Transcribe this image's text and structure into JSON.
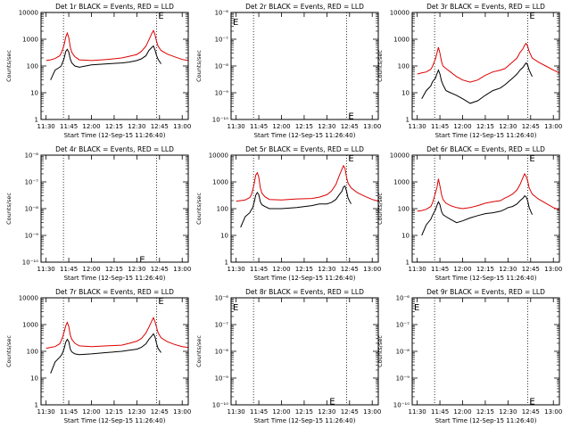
{
  "figure": {
    "xlabel": "Start Time (12-Sep-15 11:26:40)",
    "ylabel": "Counts/sec",
    "xtick_labels": [
      "11:30",
      "11:45",
      "12:00",
      "12:15",
      "12:30",
      "12:45",
      "13:00"
    ],
    "xtick_minutes": [
      0,
      15,
      30,
      45,
      60,
      75,
      90
    ],
    "xlim_minutes_after_1130": [
      -3.333,
      94
    ],
    "dotted_line_minutes": [
      11.5,
      73
    ],
    "colors": {
      "events": "#000000",
      "lld": "#dd0000",
      "axes": "#000000"
    }
  },
  "chart_data": [
    {
      "type": "line",
      "title": "Det 1r BLACK = Events, RED = LLD",
      "yscale": "log",
      "ylim": [
        1,
        10000
      ],
      "ytick_labels": [
        "1",
        "10",
        "100",
        "1000",
        "10000"
      ],
      "marker": {
        "text": "E",
        "x_minute": 73,
        "y": 8000
      },
      "x_minutes": [
        0,
        3,
        6,
        9,
        10,
        11,
        12,
        13,
        14,
        15,
        16,
        17,
        19,
        22,
        30,
        40,
        50,
        55,
        60,
        63,
        66,
        68,
        70,
        71,
        72,
        73,
        74,
        76,
        80,
        85,
        90,
        94
      ],
      "series": [
        {
          "name": "LLD",
          "color": "#dd0000",
          "values": [
            160,
            170,
            190,
            240,
            300,
            420,
            650,
            1200,
            1700,
            1150,
            500,
            320,
            220,
            170,
            160,
            175,
            200,
            230,
            270,
            350,
            550,
            950,
            1700,
            2100,
            1500,
            850,
            560,
            380,
            280,
            220,
            175,
            160
          ]
        },
        {
          "name": "Events",
          "color": "#000000",
          "x_start": 3,
          "x_end": 76,
          "values": [
            null,
            30,
            70,
            90,
            100,
            140,
            200,
            350,
            420,
            330,
            180,
            130,
            100,
            90,
            110,
            120,
            130,
            140,
            160,
            185,
            240,
            380,
            500,
            560,
            400,
            250,
            180,
            120,
            null,
            null,
            null,
            null
          ]
        }
      ]
    },
    {
      "type": "line",
      "title": "Det 2r BLACK = Events, RED = LLD",
      "yscale": "log",
      "ylim": [
        1e-10,
        1e-06
      ],
      "ytick_labels": [
        "10⁻⁶",
        "10⁻⁷",
        "10⁻⁸",
        "10⁻⁹",
        "10⁻¹⁰"
      ],
      "marker": {
        "text": "E",
        "x_minute": 73,
        "y": 1.4e-10
      },
      "corner_marker": "E",
      "series": []
    },
    {
      "type": "line",
      "title": "Det 3r BLACK = Events, RED = LLD",
      "yscale": "log",
      "ylim": [
        1,
        10000
      ],
      "ytick_labels": [
        "1",
        "10",
        "100",
        "1000",
        "10000"
      ],
      "marker": {
        "text": "E",
        "x_minute": 73,
        "y": 8000
      },
      "x_minutes": [
        0,
        3,
        6,
        9,
        10,
        11,
        12,
        13,
        14,
        15,
        16,
        17,
        19,
        22,
        26,
        30,
        35,
        40,
        45,
        50,
        55,
        58,
        60,
        63,
        66,
        68,
        70,
        71,
        72,
        73,
        74,
        76,
        80,
        85,
        90,
        94
      ],
      "series": [
        {
          "name": "LLD",
          "color": "#dd0000",
          "values": [
            50,
            55,
            60,
            75,
            95,
            130,
            180,
            300,
            500,
            300,
            150,
            100,
            80,
            60,
            40,
            30,
            25,
            30,
            45,
            60,
            70,
            80,
            100,
            140,
            200,
            320,
            450,
            600,
            700,
            550,
            350,
            200,
            140,
            100,
            70,
            55
          ]
        },
        {
          "name": "Events",
          "color": "#000000",
          "x_start": 3,
          "x_end": 76,
          "values": [
            null,
            6,
            12,
            18,
            25,
            30,
            35,
            50,
            70,
            50,
            28,
            20,
            12,
            10,
            8,
            6,
            4,
            5,
            8,
            12,
            15,
            20,
            25,
            35,
            50,
            70,
            90,
            110,
            130,
            110,
            70,
            40,
            null,
            null,
            null,
            null
          ]
        }
      ]
    },
    {
      "type": "line",
      "title": "Det 4r BLACK = Events, RED = LLD",
      "yscale": "log",
      "ylim": [
        1e-10,
        1e-06
      ],
      "ytick_labels": [
        "10⁻⁶",
        "10⁻⁷",
        "10⁻⁸",
        "10⁻⁹",
        "10⁻¹⁰"
      ],
      "marker": {
        "text": "E",
        "x_minute": 60.5,
        "y": 1.3e-10
      },
      "series": []
    },
    {
      "type": "line",
      "title": "Det 5r BLACK = Events, RED = LLD",
      "yscale": "log",
      "ylim": [
        1,
        10000
      ],
      "ytick_labels": [
        "1",
        "10",
        "100",
        "1000",
        "10000"
      ],
      "marker": {
        "text": "E",
        "x_minute": 73,
        "y": 8000
      },
      "x_minutes": [
        0,
        3,
        6,
        9,
        10,
        11,
        12,
        13,
        14,
        15,
        16,
        17,
        19,
        22,
        30,
        40,
        50,
        55,
        60,
        63,
        66,
        68,
        70,
        71,
        72,
        73,
        74,
        76,
        80,
        85,
        90,
        94
      ],
      "series": [
        {
          "name": "LLD",
          "color": "#dd0000",
          "values": [
            190,
            200,
            210,
            260,
            320,
            500,
            900,
            1800,
            2200,
            1500,
            600,
            380,
            280,
            220,
            210,
            230,
            240,
            270,
            330,
            450,
            800,
            1600,
            3000,
            4000,
            3200,
            1500,
            900,
            600,
            400,
            290,
            220,
            190
          ]
        },
        {
          "name": "Events",
          "color": "#000000",
          "x_start": 3,
          "x_end": 76,
          "values": [
            null,
            20,
            50,
            70,
            90,
            110,
            180,
            320,
            400,
            330,
            180,
            140,
            120,
            100,
            100,
            110,
            130,
            150,
            150,
            170,
            220,
            320,
            450,
            650,
            700,
            450,
            250,
            150,
            null,
            null,
            null,
            null
          ]
        }
      ]
    },
    {
      "type": "line",
      "title": "Det 6r BLACK = Events, RED = LLD",
      "yscale": "log",
      "ylim": [
        1,
        10000
      ],
      "ytick_labels": [
        "1",
        "10",
        "100",
        "1000",
        "10000"
      ],
      "marker": {
        "text": "E",
        "x_minute": 73,
        "y": 8000
      },
      "x_minutes": [
        0,
        3,
        6,
        9,
        10,
        11,
        12,
        13,
        14,
        15,
        16,
        17,
        19,
        22,
        26,
        30,
        35,
        40,
        45,
        50,
        55,
        58,
        60,
        63,
        66,
        68,
        70,
        71,
        72,
        73,
        74,
        76,
        80,
        85,
        90,
        94
      ],
      "series": [
        {
          "name": "LLD",
          "color": "#dd0000",
          "values": [
            80,
            85,
            95,
            120,
            160,
            240,
            380,
            600,
            1300,
            700,
            350,
            220,
            160,
            130,
            110,
            100,
            110,
            130,
            160,
            180,
            200,
            250,
            280,
            350,
            500,
            800,
            1500,
            2000,
            1600,
            1100,
            600,
            350,
            230,
            160,
            110,
            90
          ]
        },
        {
          "name": "Events",
          "color": "#000000",
          "x_start": 3,
          "x_end": 76,
          "values": [
            null,
            10,
            25,
            40,
            55,
            70,
            90,
            130,
            180,
            140,
            80,
            60,
            50,
            40,
            30,
            35,
            45,
            55,
            65,
            70,
            80,
            95,
            110,
            120,
            150,
            200,
            250,
            300,
            280,
            200,
            110,
            60,
            null,
            null,
            null,
            null
          ]
        }
      ]
    },
    {
      "type": "line",
      "title": "Det 7r BLACK = Events, RED = LLD",
      "yscale": "log",
      "ylim": [
        1,
        10000
      ],
      "ytick_labels": [
        "1",
        "10",
        "100",
        "1000",
        "10000"
      ],
      "marker": {
        "text": "E",
        "x_minute": 73,
        "y": 8000
      },
      "x_minutes": [
        0,
        3,
        6,
        9,
        10,
        11,
        12,
        13,
        14,
        15,
        16,
        17,
        19,
        22,
        30,
        40,
        50,
        55,
        60,
        63,
        66,
        68,
        70,
        71,
        72,
        73,
        74,
        76,
        80,
        85,
        90,
        94
      ],
      "series": [
        {
          "name": "LLD",
          "color": "#dd0000",
          "values": [
            130,
            140,
            150,
            190,
            250,
            350,
            550,
            900,
            1200,
            850,
            400,
            280,
            200,
            160,
            150,
            160,
            170,
            200,
            240,
            300,
            480,
            800,
            1400,
            1800,
            1300,
            800,
            500,
            320,
            230,
            180,
            150,
            140
          ]
        },
        {
          "name": "Events",
          "color": "#000000",
          "x_start": 3,
          "x_end": 76,
          "values": [
            null,
            15,
            40,
            60,
            70,
            90,
            130,
            220,
            280,
            230,
            120,
            95,
            80,
            75,
            80,
            90,
            100,
            110,
            120,
            140,
            190,
            280,
            380,
            450,
            350,
            200,
            130,
            90,
            null,
            null,
            null,
            null
          ]
        }
      ]
    },
    {
      "type": "line",
      "title": "Det 8r BLACK = Events, RED = LLD",
      "yscale": "log",
      "ylim": [
        1e-10,
        1e-06
      ],
      "ytick_labels": [
        "10⁻⁶",
        "10⁻⁷",
        "10⁻⁸",
        "10⁻⁹",
        "10⁻¹⁰"
      ],
      "marker": {
        "text": "E",
        "x_minute": 60.5,
        "y": 1.4e-10
      },
      "corner_marker": "E",
      "series": []
    },
    {
      "type": "line",
      "title": "Det 9r BLACK = Events, RED = LLD",
      "yscale": "log",
      "ylim": [
        1e-10,
        1e-06
      ],
      "ytick_labels": [
        "10⁻⁶",
        "10⁻⁷",
        "10⁻⁸",
        "10⁻⁹",
        "10⁻¹⁰"
      ],
      "marker": {
        "text": "E",
        "x_minute": 73,
        "y": 1.4e-10
      },
      "corner_marker": "E",
      "series": []
    }
  ]
}
